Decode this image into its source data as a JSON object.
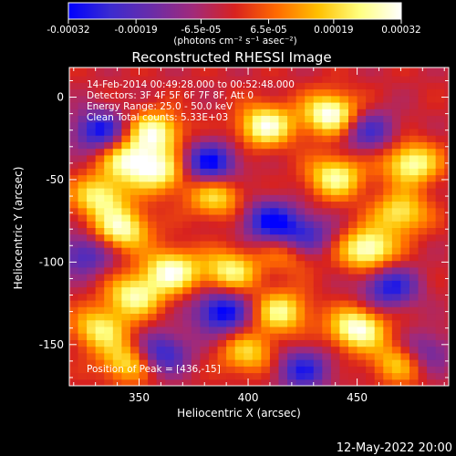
{
  "chart_data": {
    "type": "heatmap",
    "title": "Reconstructed RHESSI Image",
    "xlabel": "Heliocentric X (arcsec)",
    "ylabel": "Heliocentric Y (arcsec)",
    "xlim": [
      318,
      492
    ],
    "ylim": [
      -175,
      18
    ],
    "x_ticks": [
      350,
      400,
      450
    ],
    "y_ticks": [
      0,
      -50,
      -100,
      -150
    ],
    "colorbar": {
      "ticks": [
        "-0.00032",
        "-0.00019",
        "-6.5e-05",
        "6.5e-05",
        "0.00019",
        "0.00032"
      ],
      "tick_values": [
        -0.00032,
        -0.00019,
        -6.5e-05,
        6.5e-05,
        0.00019,
        0.00032
      ],
      "range": [
        -0.00032,
        0.00032
      ],
      "units": "(photons cm⁻² s⁻¹ asec⁻²)",
      "stops": [
        "#0000ff",
        "#3b2bd0",
        "#6a2ca8",
        "#a12a7a",
        "#d8221f",
        "#ff6a00",
        "#ffc000",
        "#ffff80",
        "#ffffff"
      ]
    },
    "annotations": [
      "14-Feb-2014 00:49:28.000 to 00:52:48.000",
      "Detectors: 3F 4F 5F 6F 7F 8F, Att 0",
      "Energy Range: 25.0 - 50.0 keV",
      "Clean     Total counts: 5.33E+03"
    ],
    "peak_label": "Position of Peak = [436,-15]",
    "peak": [
      436,
      -15
    ],
    "hot_spots": [
      {
        "x": 438,
        "y": -10,
        "v": 1.0
      },
      {
        "x": 408,
        "y": -17,
        "v": 0.9
      },
      {
        "x": 357,
        "y": -21,
        "v": 0.85
      },
      {
        "x": 345,
        "y": -38,
        "v": 0.8
      },
      {
        "x": 332,
        "y": -60,
        "v": 0.75
      },
      {
        "x": 360,
        "y": -45,
        "v": 0.75
      },
      {
        "x": 342,
        "y": -80,
        "v": 0.85
      },
      {
        "x": 365,
        "y": -105,
        "v": 0.9
      },
      {
        "x": 348,
        "y": -120,
        "v": 0.8
      },
      {
        "x": 332,
        "y": -140,
        "v": 0.7
      },
      {
        "x": 392,
        "y": -105,
        "v": 0.75
      },
      {
        "x": 420,
        "y": -92,
        "v": 0.6
      },
      {
        "x": 455,
        "y": -92,
        "v": 0.95
      },
      {
        "x": 470,
        "y": -70,
        "v": 0.7
      },
      {
        "x": 440,
        "y": -48,
        "v": 0.8
      },
      {
        "x": 475,
        "y": -40,
        "v": 0.85
      },
      {
        "x": 415,
        "y": -130,
        "v": 0.75
      },
      {
        "x": 450,
        "y": -140,
        "v": 0.95
      },
      {
        "x": 470,
        "y": -160,
        "v": 0.7
      },
      {
        "x": 345,
        "y": -160,
        "v": 0.7
      },
      {
        "x": 385,
        "y": -60,
        "v": 0.65
      },
      {
        "x": 400,
        "y": -155,
        "v": 0.6
      }
    ],
    "cold_spots": [
      {
        "x": 332,
        "y": -20,
        "v": -0.8
      },
      {
        "x": 382,
        "y": -40,
        "v": -0.9
      },
      {
        "x": 410,
        "y": -75,
        "v": -0.8
      },
      {
        "x": 425,
        "y": -85,
        "v": -0.85
      },
      {
        "x": 388,
        "y": -130,
        "v": -0.9
      },
      {
        "x": 465,
        "y": -115,
        "v": -0.75
      },
      {
        "x": 425,
        "y": -165,
        "v": -0.7
      },
      {
        "x": 360,
        "y": -155,
        "v": -0.75
      },
      {
        "x": 455,
        "y": -20,
        "v": -0.6
      },
      {
        "x": 480,
        "y": -155,
        "v": -0.6
      },
      {
        "x": 325,
        "y": -95,
        "v": -0.6
      }
    ]
  },
  "footer": {
    "timestamp": "12-May-2022 20:00"
  }
}
